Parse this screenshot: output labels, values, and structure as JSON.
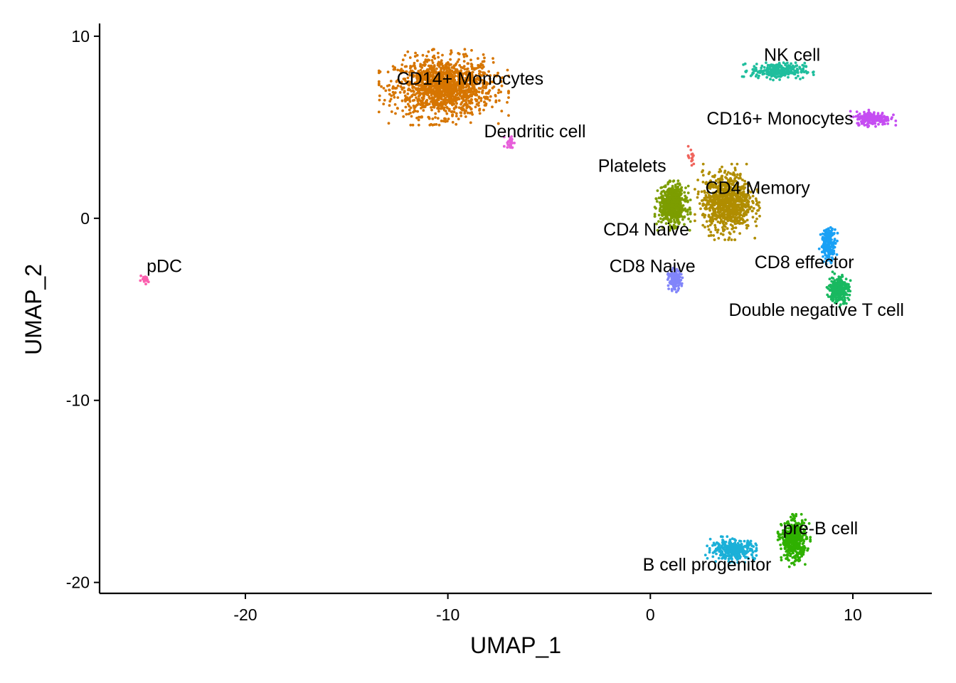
{
  "chart_data": {
    "type": "scatter",
    "title": "",
    "xlabel": "UMAP_1",
    "ylabel": "UMAP_2",
    "xlim": [
      -27.2,
      13.9
    ],
    "ylim": [
      -20.6,
      10.7
    ],
    "x_ticks": [
      -20,
      -10,
      0,
      10
    ],
    "y_ticks": [
      10,
      0,
      -10,
      -20
    ],
    "grid": false,
    "legend": "none",
    "clusters": [
      {
        "label": "CD14+ Monocytes",
        "color": "#D67500",
        "center": [
          -10.2,
          7.2
        ],
        "spread": [
          2.0,
          1.3
        ],
        "n": 1400
      },
      {
        "label": "Dendritic cell",
        "color": "#E75FDA",
        "center": [
          -6.9,
          4.2
        ],
        "spread": [
          0.2,
          0.35
        ],
        "n": 25
      },
      {
        "label": "NK cell",
        "color": "#1FBE9D",
        "center": [
          6.3,
          8.1
        ],
        "spread": [
          1.1,
          0.35
        ],
        "n": 260
      },
      {
        "label": "CD16+ Monocytes",
        "color": "#C54DF2",
        "center": [
          11.0,
          5.5
        ],
        "spread": [
          0.7,
          0.3
        ],
        "n": 220
      },
      {
        "label": "Platelets",
        "color": "#F0645C",
        "center": [
          2.0,
          3.3
        ],
        "spread": [
          0.15,
          0.5
        ],
        "n": 14
      },
      {
        "label": "CD4 Memory",
        "color": "#B08D00",
        "center": [
          3.8,
          0.9
        ],
        "spread": [
          1.0,
          1.3
        ],
        "n": 900
      },
      {
        "label": "CD4 Naive",
        "color": "#7C9D00",
        "center": [
          1.1,
          0.7
        ],
        "spread": [
          0.55,
          0.85
        ],
        "n": 620
      },
      {
        "label": "CD8 Naive",
        "color": "#8185FA",
        "center": [
          1.2,
          -3.4
        ],
        "spread": [
          0.25,
          0.45
        ],
        "n": 160
      },
      {
        "label": "CD8 effector",
        "color": "#1AA1F5",
        "center": [
          8.8,
          -1.4
        ],
        "spread": [
          0.3,
          0.7
        ],
        "n": 200
      },
      {
        "label": "Double negative T cell",
        "color": "#19B960",
        "center": [
          9.3,
          -3.9
        ],
        "spread": [
          0.4,
          0.6
        ],
        "n": 300
      },
      {
        "label": "pDC",
        "color": "#FB5FAE",
        "center": [
          -25.0,
          -3.4
        ],
        "spread": [
          0.18,
          0.15
        ],
        "n": 25
      },
      {
        "label": "B cell progenitor",
        "color": "#1BB0D8",
        "center": [
          4.1,
          -18.2
        ],
        "spread": [
          0.9,
          0.45
        ],
        "n": 320
      },
      {
        "label": "pre-B cell",
        "color": "#2FB000",
        "center": [
          7.1,
          -17.7
        ],
        "spread": [
          0.5,
          0.9
        ],
        "n": 460
      }
    ],
    "labels": [
      {
        "text": "CD14+ Monocytes",
        "x": -8.9,
        "y": 7.7
      },
      {
        "text": "Dendritic cell",
        "x": -5.7,
        "y": 4.8
      },
      {
        "text": "NK cell",
        "x": 7.0,
        "y": 9.0
      },
      {
        "text": "CD16+ Monocytes",
        "x": 6.4,
        "y": 5.5
      },
      {
        "text": "Platelets",
        "x": -0.9,
        "y": 2.9
      },
      {
        "text": "CD4 Memory",
        "x": 5.3,
        "y": 1.7
      },
      {
        "text": "CD4 Naive",
        "x": -0.2,
        "y": -0.6
      },
      {
        "text": "CD8 Naive",
        "x": 0.1,
        "y": -2.6
      },
      {
        "text": "CD8 effector",
        "x": 7.6,
        "y": -2.4
      },
      {
        "text": "Double negative T cell",
        "x": 8.2,
        "y": -5.0
      },
      {
        "text": "pDC",
        "x": -24.0,
        "y": -2.6
      },
      {
        "text": "B cell progenitor",
        "x": 2.8,
        "y": -19.0
      },
      {
        "text": "pre-B cell",
        "x": 8.4,
        "y": -17.0
      }
    ]
  }
}
